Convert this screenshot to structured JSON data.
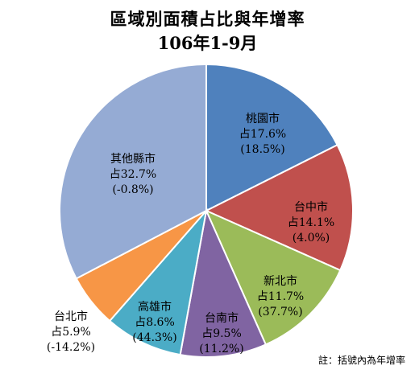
{
  "chart_data": {
    "type": "pie",
    "title": "區域別面積占比與年增率",
    "subtitle": "106年1-9月",
    "slices": [
      {
        "name": "桃園市",
        "share_label": "占17.6%",
        "growth_label": "(18.5%)",
        "value": 17.6,
        "growth": 18.5,
        "color": "#4f81bd"
      },
      {
        "name": "台中市",
        "share_label": "占14.1%",
        "growth_label": "(4.0%)",
        "value": 14.1,
        "growth": 4.0,
        "color": "#c0504d"
      },
      {
        "name": "新北市",
        "share_label": "占11.7%",
        "growth_label": "(37.7%)",
        "value": 11.7,
        "growth": 37.7,
        "color": "#9bbb59"
      },
      {
        "name": "台南市",
        "share_label": "占9.5%",
        "growth_label": "(11.2%)",
        "value": 9.5,
        "growth": 11.2,
        "color": "#8064a2"
      },
      {
        "name": "高雄市",
        "share_label": "占8.6%",
        "growth_label": "(44.3%)",
        "value": 8.6,
        "growth": 44.3,
        "color": "#4bacc6"
      },
      {
        "name": "台北市",
        "share_label": "占5.9%",
        "growth_label": "(-14.2%)",
        "value": 5.9,
        "growth": -14.2,
        "color": "#f79646"
      },
      {
        "name": "其他縣市",
        "share_label": "占32.7%",
        "growth_label": "(-0.8%)",
        "value": 32.7,
        "growth": -0.8,
        "color": "#95abd4"
      }
    ],
    "note": "註：括號內為年增率"
  }
}
